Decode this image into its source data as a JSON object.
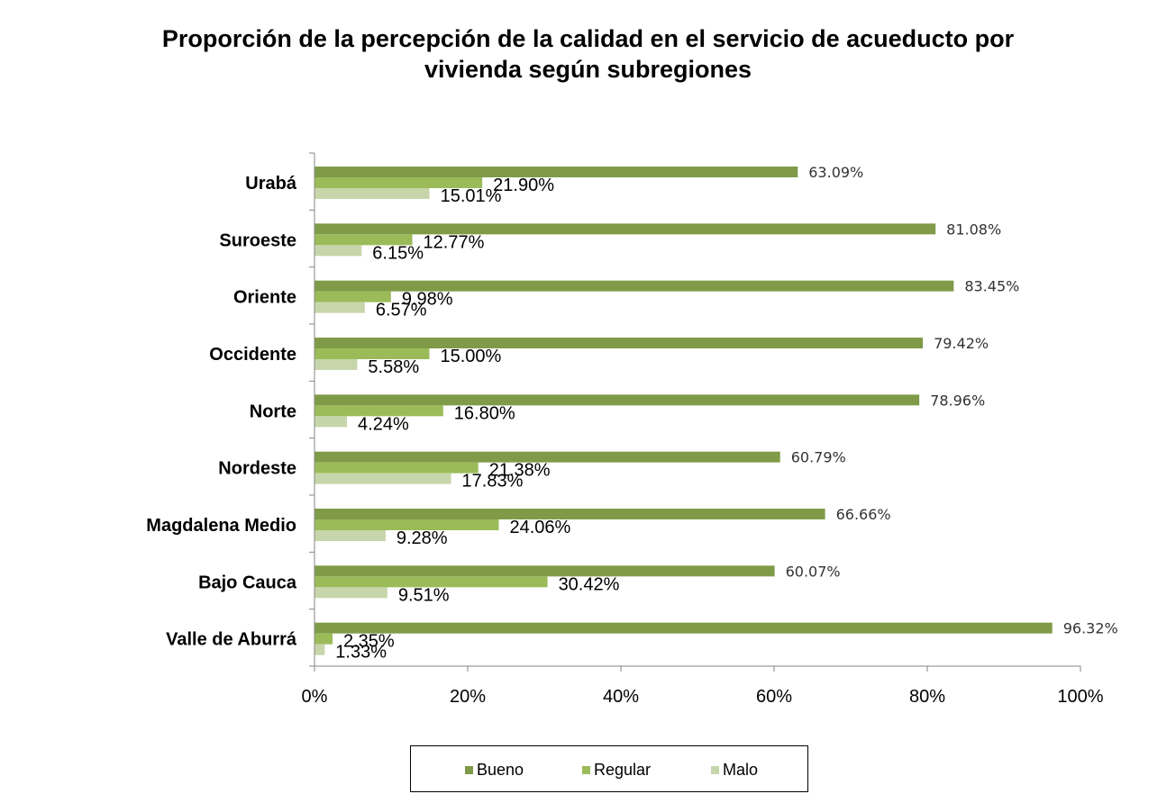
{
  "chart_data": {
    "type": "bar",
    "orientation": "horizontal",
    "title": "Proporción de la percepción de la calidad en el servicio de acueducto por vivienda según subregiones",
    "title_lines": [
      "Proporción de la percepción de la calidad en el servicio de acueducto por",
      "vivienda según subregiones"
    ],
    "categories": [
      "Urabá",
      "Suroeste",
      "Oriente",
      "Occidente",
      "Norte",
      "Nordeste",
      "Magdalena Medio",
      "Bajo Cauca",
      "Valle de Aburrá"
    ],
    "series": [
      {
        "name": "Bueno",
        "color": "#7f9b48",
        "values": [
          63.09,
          81.08,
          83.45,
          79.42,
          78.96,
          60.79,
          66.66,
          60.07,
          96.32
        ],
        "labels": [
          "63.09%",
          "81.08%",
          "83.45%",
          "79.42%",
          "78.96%",
          "60.79%",
          "66.66%",
          "60.07%",
          "96.32%"
        ]
      },
      {
        "name": "Regular",
        "color": "#9bbb59",
        "values": [
          21.9,
          12.77,
          9.98,
          15.0,
          16.8,
          21.38,
          24.06,
          30.42,
          2.35
        ],
        "labels": [
          "21.90%",
          "12.77%",
          "9.98%",
          "15.00%",
          "16.80%",
          "21.38%",
          "24.06%",
          "30.42%",
          "2.35%"
        ]
      },
      {
        "name": "Malo",
        "color": "#c7d6aa",
        "values": [
          15.01,
          6.15,
          6.57,
          5.58,
          4.24,
          17.83,
          9.28,
          9.51,
          1.33
        ],
        "labels": [
          "15.01%",
          "6.15%",
          "6.57%",
          "5.58%",
          "4.24%",
          "17.83%",
          "9.28%",
          "9.51%",
          "1.33%"
        ]
      }
    ],
    "xlim": [
      0,
      100
    ],
    "xticks": [
      0,
      20,
      40,
      60,
      80,
      100
    ],
    "xtick_labels": [
      "0%",
      "20%",
      "40%",
      "60%",
      "80%",
      "100%"
    ],
    "grid": false,
    "legend_position": "bottom"
  }
}
